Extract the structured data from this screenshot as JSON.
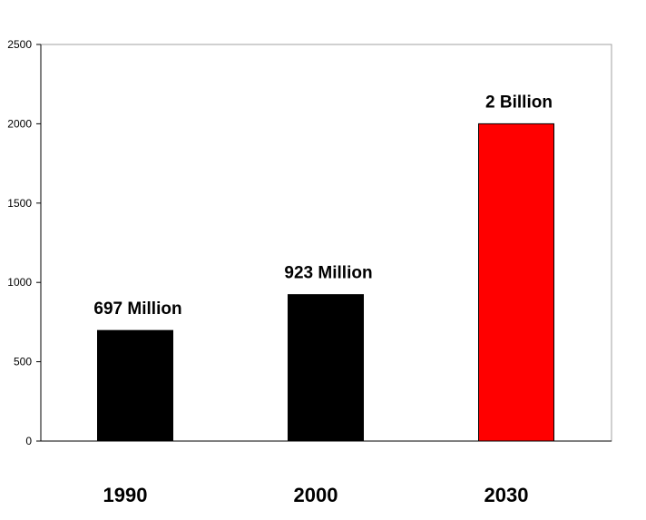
{
  "chart_data": {
    "type": "bar",
    "title": "",
    "xlabel": "",
    "ylabel": "",
    "categories": [
      "1990",
      "2000",
      "2030"
    ],
    "values": [
      697,
      923,
      2000
    ],
    "data_labels": [
      "697 Million",
      "923 Million",
      "2 Billion"
    ],
    "bar_colors": [
      "#000000",
      "#000000",
      "#ff0000"
    ],
    "ylim": [
      0,
      2500
    ],
    "yticks": [
      0,
      500,
      1000,
      1500,
      2000,
      2500
    ],
    "ytick_labels": [
      "0",
      "500",
      "1000",
      "1500",
      "2000",
      "2500"
    ],
    "grid": false,
    "legend": "none"
  }
}
